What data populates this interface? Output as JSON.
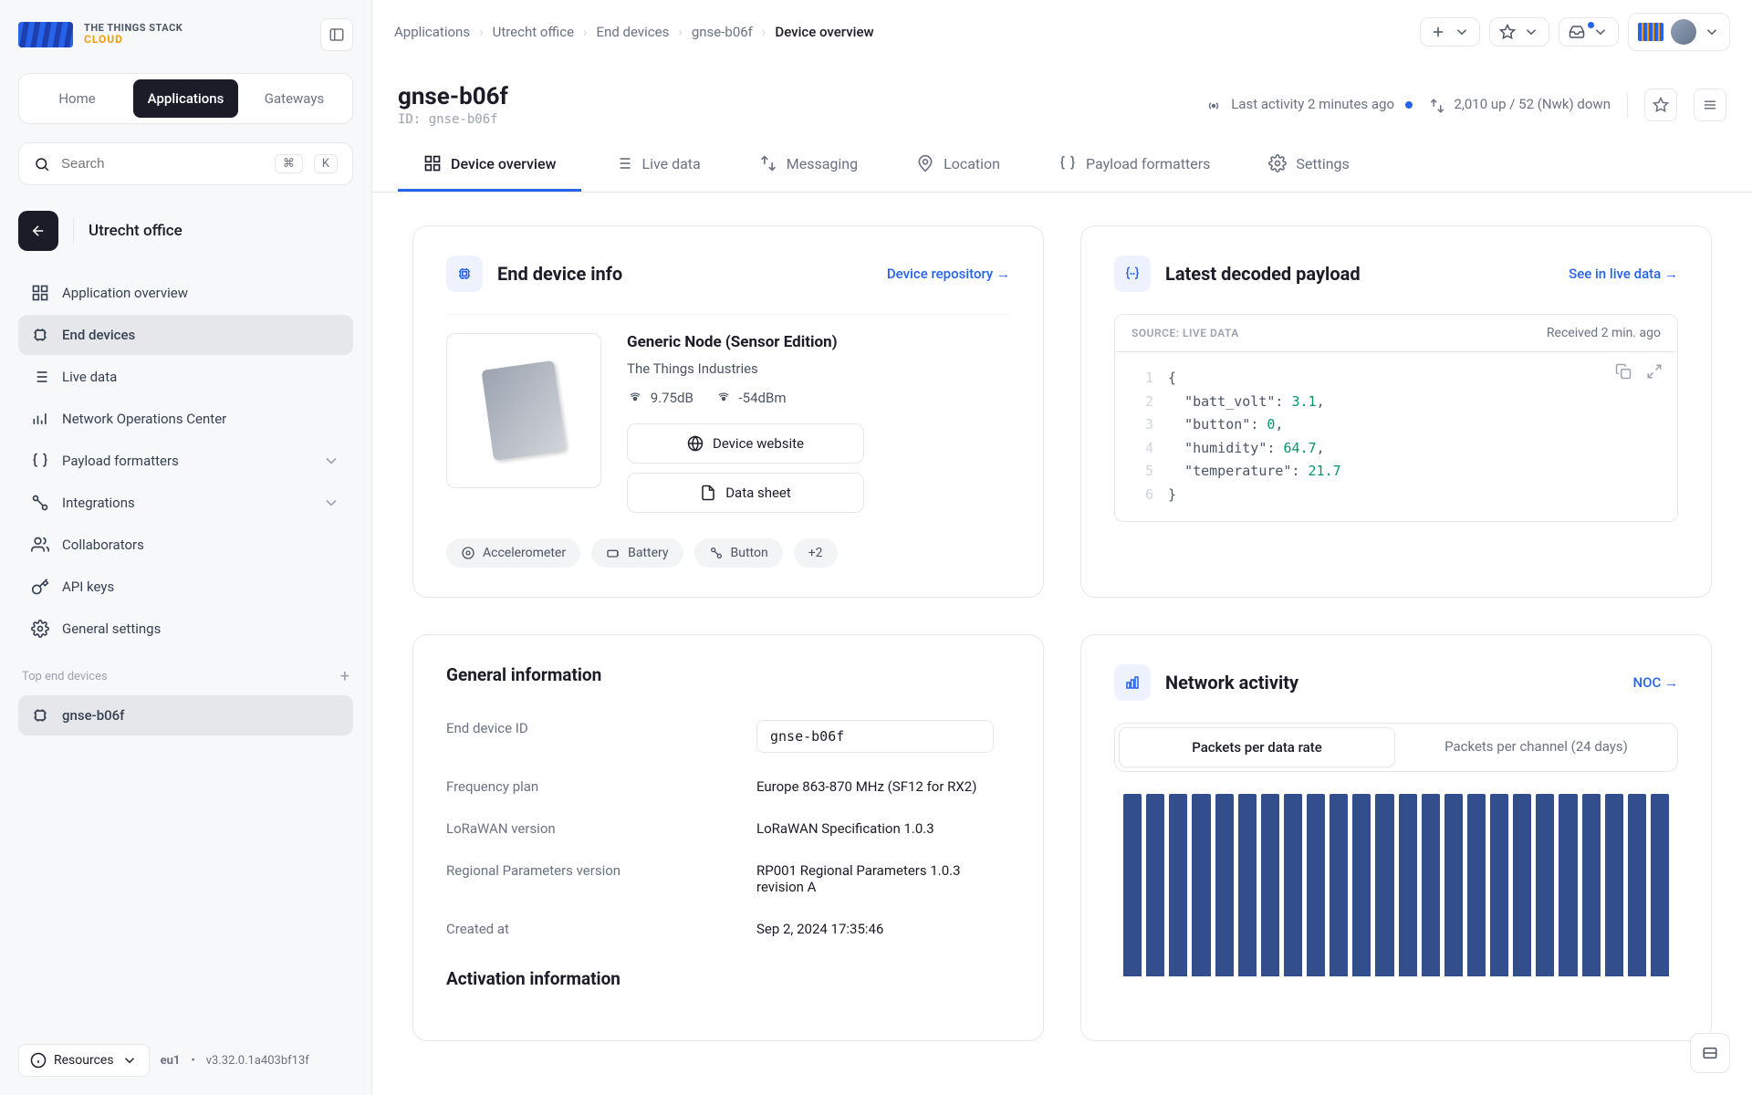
{
  "brand": {
    "line1": "THE THINGS STACK",
    "line2": "CLOUD"
  },
  "topnav": {
    "tabs": [
      "Home",
      "Applications",
      "Gateways"
    ],
    "active": 1
  },
  "search": {
    "placeholder": "Search",
    "kbd1": "⌘",
    "kbd2": "K"
  },
  "context": {
    "title": "Utrecht office"
  },
  "sidebar": {
    "items": [
      {
        "label": "Application overview"
      },
      {
        "label": "End devices"
      },
      {
        "label": "Live data"
      },
      {
        "label": "Network Operations Center"
      },
      {
        "label": "Payload formatters",
        "expandable": true
      },
      {
        "label": "Integrations",
        "expandable": true
      },
      {
        "label": "Collaborators"
      },
      {
        "label": "API keys"
      },
      {
        "label": "General settings"
      }
    ],
    "active": 1,
    "section_label": "Top end devices",
    "top_devices": [
      {
        "label": "gnse-b06f"
      }
    ]
  },
  "footer": {
    "resources": "Resources",
    "region": "eu1",
    "version": "v3.32.0.1a403bf13f"
  },
  "breadcrumb": [
    "Applications",
    "Utrecht office",
    "End devices",
    "gnse-b06f",
    "Device overview"
  ],
  "header": {
    "title": "gnse-b06f",
    "id_label": "ID:",
    "id": "gnse-b06f",
    "activity": "Last activity 2 minutes ago",
    "traffic": "2,010 up / 52 (Nwk) down"
  },
  "main_tabs": [
    "Device overview",
    "Live data",
    "Messaging",
    "Location",
    "Payload formatters",
    "Settings"
  ],
  "main_tabs_active": 0,
  "device_info": {
    "title": "End device info",
    "link": "Device repository →",
    "name": "Generic Node (Sensor Edition)",
    "vendor": "The Things Industries",
    "snr": "9.75dB",
    "rssi": "-54dBm",
    "website_btn": "Device website",
    "datasheet_btn": "Data sheet",
    "tags": [
      "Accelerometer",
      "Battery",
      "Button"
    ],
    "tag_more": "+2"
  },
  "payload": {
    "title": "Latest decoded payload",
    "link": "See in live data →",
    "source_label": "SOURCE: LIVE DATA",
    "received": "Received 2 min. ago",
    "lines": [
      {
        "n": "1",
        "t": "{",
        "brace": true
      },
      {
        "n": "2",
        "k": "\"batt_volt\"",
        "v": "3.1",
        "comma": true
      },
      {
        "n": "3",
        "k": "\"button\"",
        "v": "0",
        "comma": true
      },
      {
        "n": "4",
        "k": "\"humidity\"",
        "v": "64.7",
        "comma": true
      },
      {
        "n": "5",
        "k": "\"temperature\"",
        "v": "21.7"
      },
      {
        "n": "6",
        "t": "}",
        "brace": true
      }
    ]
  },
  "general": {
    "title": "General information",
    "rows": [
      {
        "label": "End device ID",
        "value": "gnse-b06f",
        "mono": true
      },
      {
        "label": "Frequency plan",
        "value": "Europe 863-870 MHz (SF12 for RX2)"
      },
      {
        "label": "LoRaWAN version",
        "value": "LoRaWAN Specification 1.0.3"
      },
      {
        "label": "Regional Parameters version",
        "value": "RP001 Regional Parameters 1.0.3 revision A"
      },
      {
        "label": "Created at",
        "value": "Sep 2, 2024 17:35:46"
      }
    ],
    "activation_title": "Activation information"
  },
  "network": {
    "title": "Network activity",
    "link": "NOC →",
    "seg_tabs": [
      "Packets per data rate",
      "Packets per channel (24 days)"
    ],
    "seg_active": 0,
    "bars": [
      100,
      100,
      100,
      100,
      100,
      100,
      100,
      100,
      100,
      100,
      100,
      100,
      100,
      100,
      100,
      100,
      100,
      100,
      100,
      100,
      100,
      100,
      100,
      100
    ],
    "bar_color": "#334e8c"
  }
}
